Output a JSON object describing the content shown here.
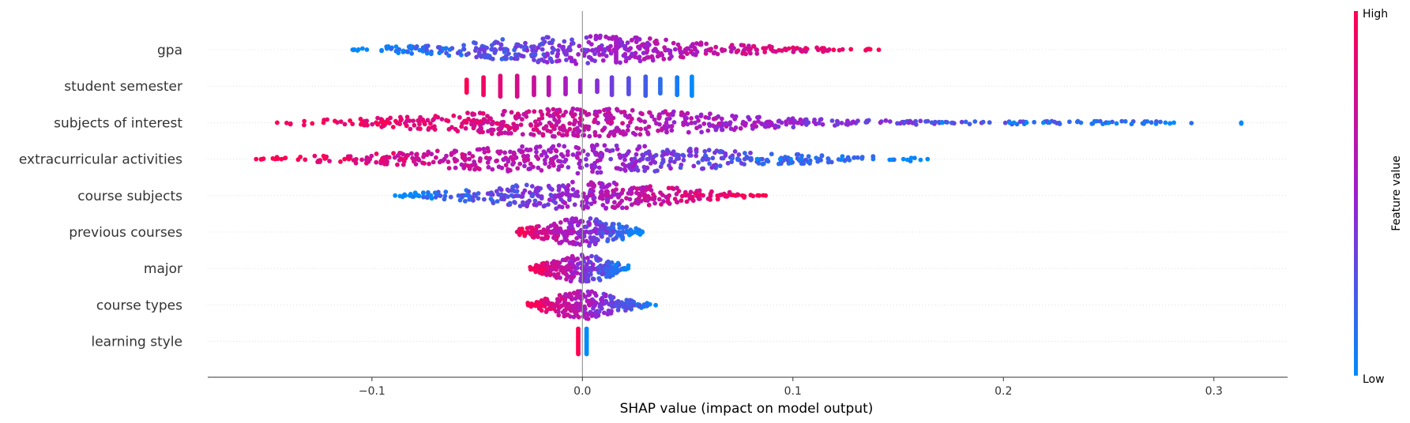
{
  "chart_data": {
    "type": "scatter",
    "subtype": "shap-beeswarm",
    "title": "",
    "xlabel": "SHAP value (impact on model output)",
    "ylabel": "",
    "xlim": [
      -0.178,
      0.335
    ],
    "xticks": [
      -0.1,
      0.0,
      0.1,
      0.2,
      0.3
    ],
    "xtick_labels": [
      "−0.1",
      "0.0",
      "0.1",
      "0.2",
      "0.3"
    ],
    "zero_line": 0.0,
    "grid": false,
    "colorbar": {
      "title": "Feature value",
      "high_label": "High",
      "low_label": "Low",
      "low_color": "#008bfb",
      "mid_color": "#9d1ed0",
      "high_color": "#ff0051"
    },
    "features": [
      {
        "name": "gpa",
        "shap_min": -0.11,
        "shap_max": 0.142,
        "direction": "high-positive"
      },
      {
        "name": "student semester",
        "shap_min": -0.055,
        "shap_max": 0.052,
        "direction": "high-negative",
        "discrete_values": [
          -0.055,
          -0.047,
          -0.039,
          -0.031,
          -0.023,
          -0.016,
          -0.008,
          -0.001,
          0.007,
          0.014,
          0.022,
          0.03,
          0.037,
          0.045,
          0.052
        ]
      },
      {
        "name": "subjects of interest",
        "shap_min": -0.145,
        "shap_max": 0.313,
        "direction": "high-negative",
        "outliers_low": [
          0.171,
          0.203,
          0.205,
          0.211,
          0.219,
          0.25,
          0.281,
          0.313
        ],
        "outliers_high": [
          -0.145,
          -0.123,
          -0.095,
          -0.093
        ]
      },
      {
        "name": "extracurricular activities",
        "shap_min": -0.155,
        "shap_max": 0.164,
        "direction": "high-negative",
        "outliers_low": [
          0.083,
          0.094,
          0.099,
          0.164
        ],
        "outliers_high": [
          -0.155,
          -0.152,
          -0.146,
          -0.143,
          -0.113,
          -0.111
        ]
      },
      {
        "name": "course subjects",
        "shap_min": -0.089,
        "shap_max": 0.087,
        "direction": "high-positive",
        "outliers_low": [
          -0.089,
          -0.082,
          -0.078,
          -0.072
        ],
        "outliers_high": [
          0.076,
          0.084,
          0.087
        ]
      },
      {
        "name": "previous courses",
        "shap_min": -0.032,
        "shap_max": 0.029,
        "direction": "high-negative"
      },
      {
        "name": "major",
        "shap_min": -0.025,
        "shap_max": 0.022,
        "direction": "high-negative"
      },
      {
        "name": "course types",
        "shap_min": -0.026,
        "shap_max": 0.035,
        "direction": "high-negative"
      },
      {
        "name": "learning style",
        "shap_min": -0.003,
        "shap_max": 0.003,
        "direction": "high-negative"
      }
    ]
  }
}
